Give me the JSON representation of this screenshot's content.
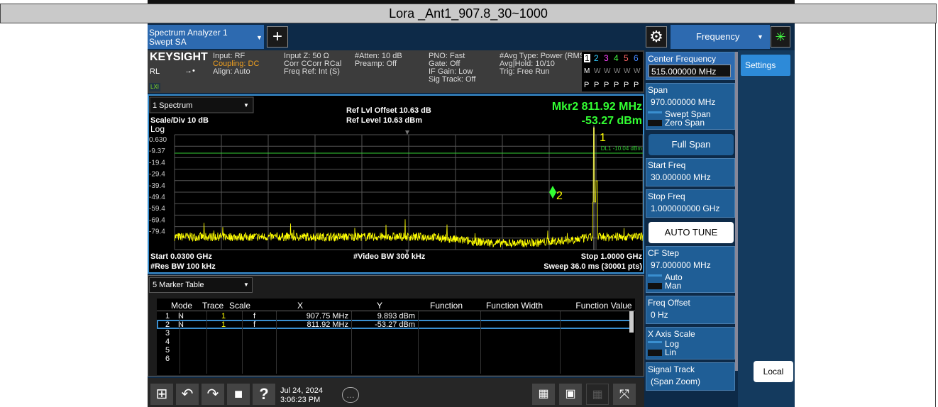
{
  "title": "Lora _Ant1_907.8_30~1000",
  "header": {
    "tab_line1": "Spectrum Analyzer 1",
    "tab_line2": "Swept SA",
    "menu": "Frequency"
  },
  "info": {
    "brand": "KEYSIGHT",
    "rl": "RL",
    "lxi": "LXI",
    "columns": [
      [
        "Input: RF",
        "Coupling: DC",
        "Align: Auto"
      ],
      [
        "Input Z: 50 Ω",
        "Corr CCorr RCal",
        "Freq Ref: Int (S)"
      ],
      [
        "#Atten: 10 dB",
        "Preamp: Off"
      ],
      [
        "PNO: Fast",
        "Gate: Off",
        "IF Gain: Low",
        "Sig Track: Off"
      ],
      [
        "#Avg Type: Power (RMS",
        "Avg|Hold: 10/10",
        "Trig: Free Run"
      ]
    ],
    "trace_nums": [
      "1",
      "2",
      "3",
      "4",
      "5",
      "6"
    ],
    "trace_types": [
      "M",
      "W",
      "W",
      "W",
      "W",
      "W"
    ],
    "trace_dets": [
      "P",
      "P",
      "P",
      "P",
      "P",
      "P"
    ]
  },
  "display": {
    "window": "1 Spectrum",
    "ref_offset": "Ref Lvl Offset 10.63 dB",
    "ref_level": "Ref Level 10.63 dBm",
    "marker_freq": "Mkr2  811.92 MHz",
    "marker_amp": "-53.27 dBm",
    "scale": "Scale/Div 10 dB",
    "log": "Log",
    "y_labels": [
      "0.630",
      "-9.37",
      "-19.4",
      "-29.4",
      "-39.4",
      "-49.4",
      "-59.4",
      "-69.4",
      "-79.4"
    ],
    "dl": "DL1 -10.04 dBm",
    "marker1": "1",
    "marker2": "2",
    "start": "Start 0.0300 GHz",
    "vbw": "#Video BW 300 kHz",
    "stop": "Stop 1.0000 GHz",
    "rbw": "#Res BW 100 kHz",
    "sweep": "Sweep 36.0 ms (30001 pts)"
  },
  "marker_table": {
    "window": "5 Marker Table",
    "headers": [
      "Mode",
      "Trace",
      "Scale",
      "X",
      "Y",
      "Function",
      "Function Width",
      "Function Value"
    ],
    "rows": [
      {
        "num": "1",
        "mode": "N",
        "trace": "1",
        "scale": "f",
        "x": "907.75 MHz",
        "y": "9.893 dBm"
      },
      {
        "num": "2",
        "mode": "N",
        "trace": "1",
        "scale": "f",
        "x": "811.92 MHz",
        "y": "-53.27 dBm"
      }
    ],
    "empty_rows": [
      "3",
      "4",
      "5",
      "6"
    ]
  },
  "taskbar": {
    "date": "Jul 24, 2024",
    "time": "3:06:23 PM"
  },
  "softkeys": [
    {
      "label": "Center Frequency",
      "value": "515.000000 MHz"
    },
    {
      "label": "Span",
      "value": "970.000000 MHz",
      "options": [
        "Swept Span",
        "Zero Span"
      ]
    },
    {
      "button": "Full Span"
    },
    {
      "label": "Start Freq",
      "value": "30.000000 MHz"
    },
    {
      "label": "Stop Freq",
      "value": "1.000000000 GHz"
    },
    {
      "button": "AUTO TUNE"
    },
    {
      "label": "CF Step",
      "value": "97.000000 MHz",
      "options": [
        "Auto",
        "Man"
      ]
    },
    {
      "label": "Freq Offset",
      "value": "0 Hz"
    },
    {
      "label": "X Axis Scale",
      "options": [
        "Log",
        "Lin"
      ]
    },
    {
      "label": "Signal Track",
      "value": "(Span Zoom)"
    }
  ],
  "side": {
    "settings": "Settings",
    "local": "Local"
  }
}
